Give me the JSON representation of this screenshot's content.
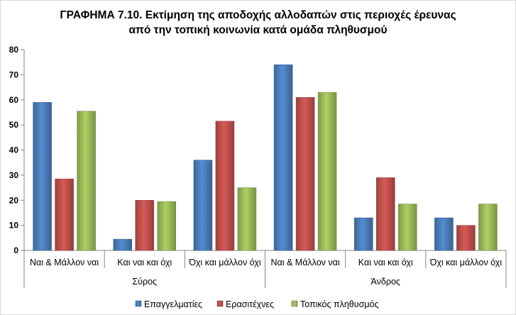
{
  "chart_data": {
    "type": "bar",
    "title_line1": "ΓΡΑΦΗΜΑ 7.10.  Εκτίμηση της αποδοχής αλλοδαπών στις περιοχές έρευνας",
    "title_line2": "από την τοπική κοινωνία κατά ομάδα πληθυσμού",
    "groups": [
      {
        "label": "Σύρος",
        "categories": [
          "Ναι & Μάλλον ναι",
          "Και ναι και όχι",
          "Όχι και μάλλον όχι"
        ]
      },
      {
        "label": "Άνδρος",
        "categories": [
          "Ναι & Μάλλον ναι",
          "Και ναι και όχι",
          "Όχι και μάλλον όχι"
        ]
      }
    ],
    "series": [
      {
        "name": "Επαγγελματίες",
        "color": "#4a7ebb",
        "values": [
          59,
          4.5,
          36,
          74,
          13,
          13
        ]
      },
      {
        "name": "Ερασιτέχνες",
        "color": "#c0504d",
        "values": [
          28.5,
          20,
          51.5,
          61,
          29,
          10
        ]
      },
      {
        "name": "Τοπικός πληθυσμός",
        "color": "#9bbb59",
        "values": [
          55.5,
          19.5,
          25,
          63,
          18.5,
          18.5
        ]
      }
    ],
    "ylim": [
      0,
      80
    ],
    "yticks": [
      "0",
      "10",
      "20",
      "30",
      "40",
      "50",
      "60",
      "70",
      "80"
    ],
    "grid": false,
    "legend_position": "bottom"
  }
}
